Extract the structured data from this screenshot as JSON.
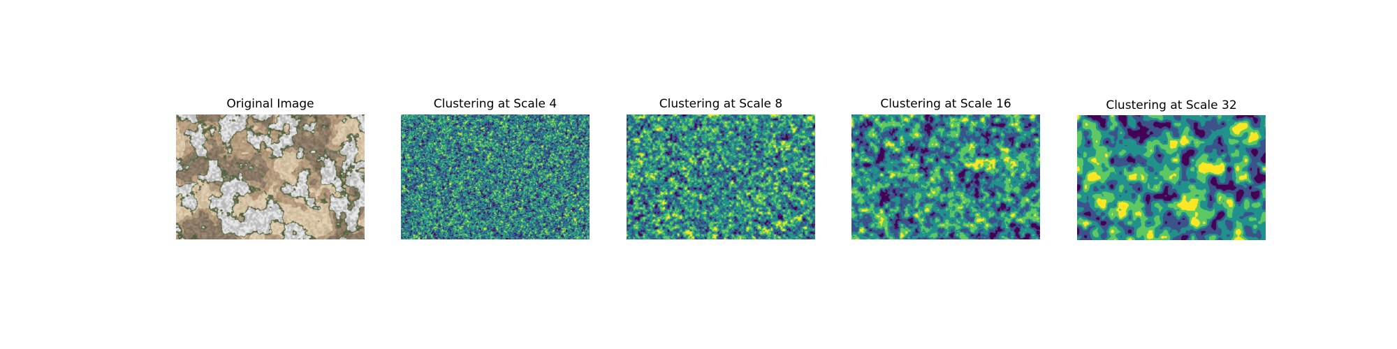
{
  "figure": {
    "panels": [
      {
        "title": "Original Image"
      },
      {
        "title": "Clustering at Scale 4"
      },
      {
        "title": "Clustering at Scale 8"
      },
      {
        "title": "Clustering at Scale 16"
      },
      {
        "title": "Clustering at Scale 32"
      }
    ]
  },
  "colors": {
    "viridis_clusters": [
      "#440154",
      "#3b528b",
      "#21918c",
      "#5ec962",
      "#fde725"
    ],
    "photo_palette": [
      "#d8c4a6",
      "#b49b7e",
      "#8a7a66",
      "#5e6b4a",
      "#dcdcdc",
      "#c8c8c8"
    ]
  }
}
